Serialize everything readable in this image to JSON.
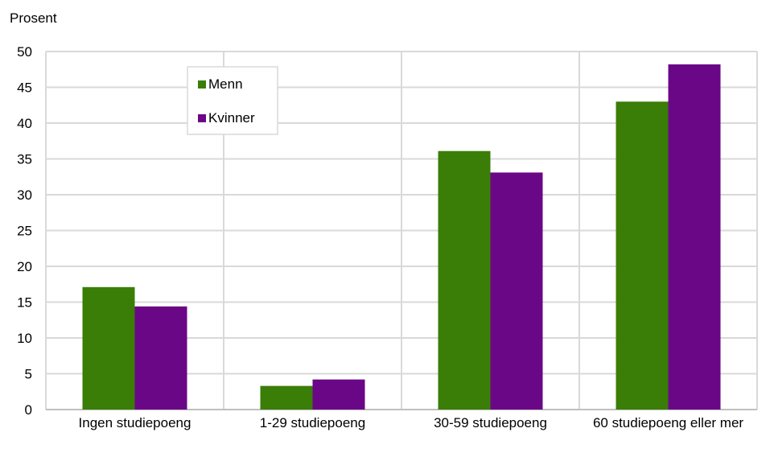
{
  "chart_data": {
    "type": "bar",
    "ylabel": "Prosent",
    "ylim": [
      0,
      50
    ],
    "yticks": [
      0,
      5,
      10,
      15,
      20,
      25,
      30,
      35,
      40,
      45,
      50
    ],
    "categories": [
      "Ingen studiepoeng",
      "1-29 studiepoeng",
      "30-59 studiepoeng",
      "60 studiepoeng eller mer"
    ],
    "series": [
      {
        "name": "Menn",
        "color": "#3a7d07",
        "values": [
          17.1,
          3.3,
          36.1,
          43.0
        ]
      },
      {
        "name": "Kvinner",
        "color": "#6a0787",
        "values": [
          14.4,
          4.2,
          33.1,
          48.2
        ]
      }
    ],
    "grid": true,
    "legend": "top-left inside plot"
  }
}
